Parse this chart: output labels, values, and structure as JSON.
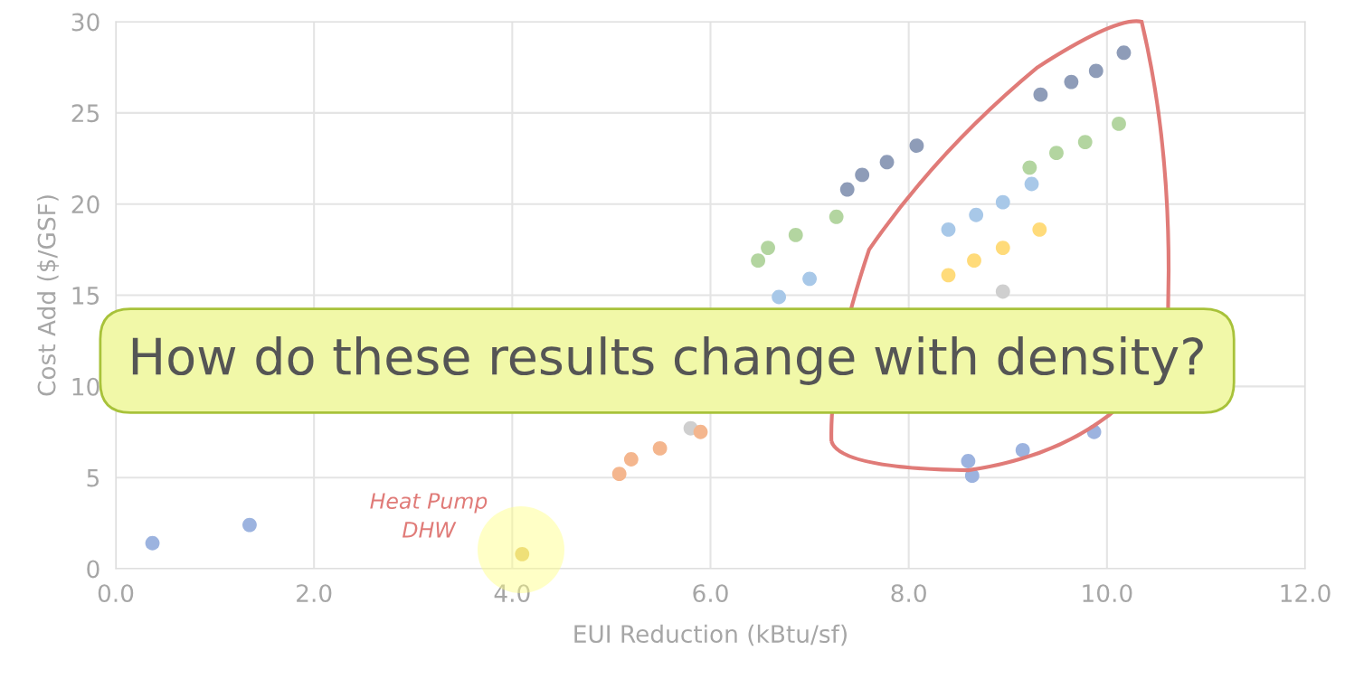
{
  "chart_data": {
    "type": "scatter",
    "xlabel": "EUI Reduction (kBtu/sf)",
    "ylabel": "Cost Add ($/GSF)",
    "xlim": [
      0,
      12
    ],
    "ylim": [
      0,
      30
    ],
    "xticks": [
      {
        "value": 0,
        "label": "0.0"
      },
      {
        "value": 2,
        "label": "2.0"
      },
      {
        "value": 4,
        "label": "4.0"
      },
      {
        "value": 6,
        "label": "6.0"
      },
      {
        "value": 8,
        "label": "8.0"
      },
      {
        "value": 10,
        "label": "10.0"
      },
      {
        "value": 12,
        "label": "12.0"
      }
    ],
    "yticks": [
      0,
      5,
      10,
      15,
      20,
      25,
      30
    ],
    "grid": true,
    "marker": "circle",
    "legend": false,
    "annotations": [
      "How do these results change with density?",
      "Heat Pump\nDHW"
    ],
    "series": [
      {
        "color": "#8e9cb8",
        "x": [
          7.38,
          7.53,
          7.78,
          8.08,
          9.33,
          9.64,
          9.89,
          10.17
        ],
        "values": [
          20.8,
          21.6,
          22.3,
          23.2,
          26.0,
          26.7,
          27.3,
          28.3
        ]
      },
      {
        "color": "#b3d5a0",
        "x": [
          6.48,
          6.58,
          6.86,
          7.27,
          9.22,
          9.49,
          9.78,
          10.12
        ],
        "values": [
          16.9,
          17.6,
          18.3,
          19.3,
          22.0,
          22.8,
          23.4,
          24.4
        ]
      },
      {
        "color": "#a8c8e8",
        "x": [
          6.69,
          7.0,
          8.4,
          8.68,
          8.95,
          9.24
        ],
        "values": [
          14.9,
          15.9,
          18.6,
          19.4,
          20.1,
          21.1
        ]
      },
      {
        "color": "#ffdb7a",
        "x": [
          8.4,
          8.66,
          8.95,
          9.32
        ],
        "values": [
          16.1,
          16.9,
          17.6,
          18.6
        ]
      },
      {
        "color": "#cfcfcf",
        "x": [
          8.95,
          5.8
        ],
        "values": [
          15.2,
          7.7
        ]
      },
      {
        "color": "#f4b68e",
        "x": [
          5.08,
          5.2,
          5.49,
          5.9
        ],
        "values": [
          5.2,
          6.0,
          6.6,
          7.5
        ]
      },
      {
        "color": "#9cb3df",
        "x": [
          0.37,
          1.35,
          8.6,
          8.64,
          9.15,
          9.87
        ],
        "values": [
          1.4,
          2.4,
          5.9,
          5.1,
          6.5,
          7.5
        ]
      },
      {
        "color": "#e2c772",
        "x": [
          4.1
        ],
        "values": [
          0.8
        ]
      }
    ]
  }
}
